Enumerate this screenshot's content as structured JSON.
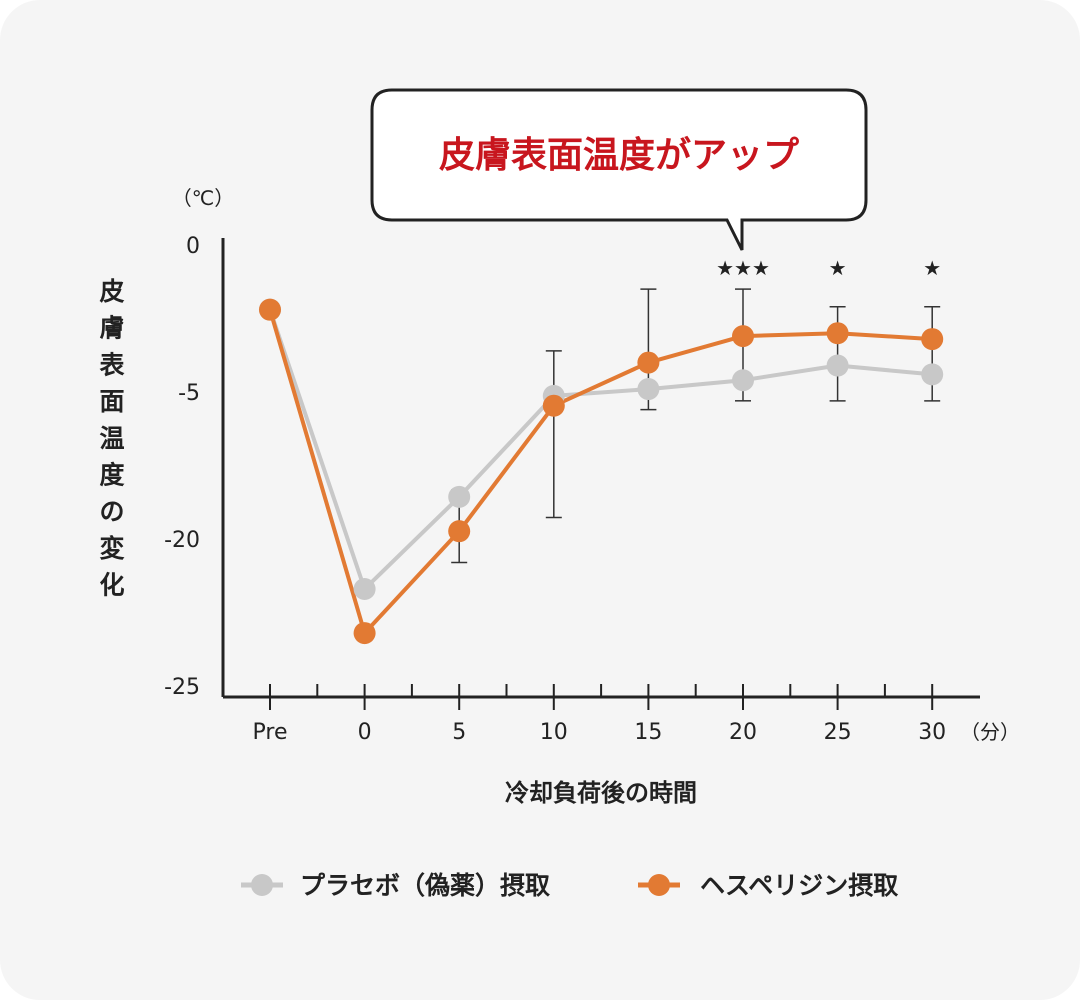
{
  "chart_data": {
    "type": "line",
    "ylabel": "皮膚表面温度の変化",
    "y_unit": "（℃）",
    "xlabel": "冷却負荷後の時間",
    "x_unit": "（分）",
    "categories": [
      "Pre",
      "0",
      "5",
      "10",
      "15",
      "20",
      "25",
      "30"
    ],
    "y_ticks": [
      "0",
      "-5",
      "-20",
      "-25"
    ],
    "y_tick_values": [
      0,
      -5,
      -20,
      -25
    ],
    "note": "The printed y ticks (0, -5, -20, -25) are spaced evenly; point values below are read in those printed tick units.",
    "series": [
      {
        "name": "プラセボ（偽薬）摂取",
        "color": "#c8c8c8",
        "values": [
          -2.2,
          -21.7,
          -15.7,
          -5.4,
          -4.9,
          -4.6,
          -4.1,
          -4.4
        ]
      },
      {
        "name": "ヘスペリジン摂取",
        "color": "#e27a33",
        "values": [
          -2.2,
          -23.2,
          -19.2,
          -6.4,
          -4.0,
          -3.1,
          -3.0,
          -3.2
        ],
        "error_low": [
          null,
          null,
          -20.8,
          -17.8,
          -6.8,
          -5.9,
          -5.9,
          -5.9
        ],
        "error_high": [
          null,
          null,
          -15.0,
          -3.6,
          -1.5,
          -1.5,
          -2.1,
          -2.1
        ]
      }
    ],
    "significance": [
      "",
      "",
      "",
      "",
      "",
      "★★★",
      "★",
      "★"
    ],
    "callout": {
      "text": "皮膚表面温度がアップ",
      "color": "#c8161e"
    },
    "grid": false,
    "legend_position": "bottom"
  }
}
